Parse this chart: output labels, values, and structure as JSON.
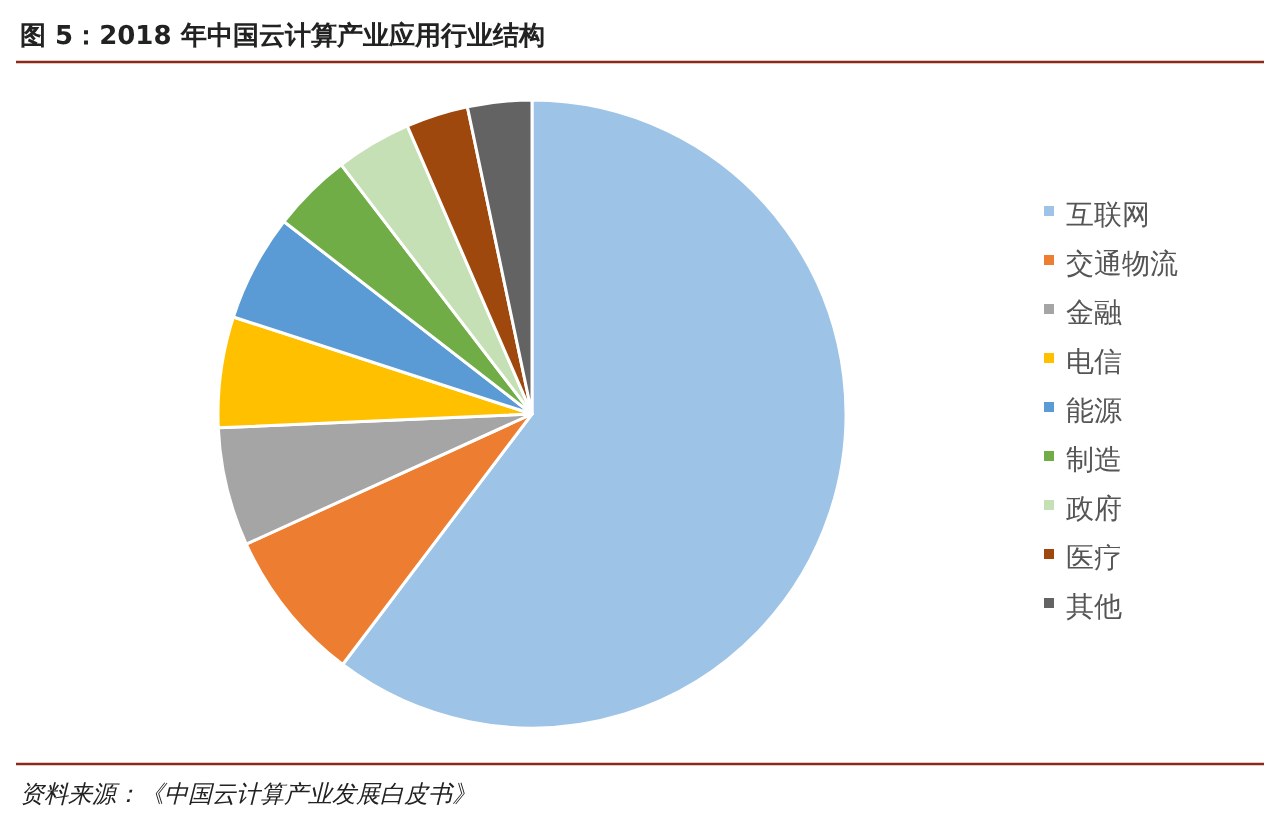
{
  "chart_data": {
    "type": "pie",
    "title": "图 5：2018 年中国云计算产业应用行业结构",
    "categories": [
      "互联网",
      "交通物流",
      "金融",
      "电信",
      "能源",
      "制造",
      "政府",
      "医疗",
      "其他"
    ],
    "values": [
      60.3,
      7.9,
      6.1,
      5.7,
      5.5,
      4.1,
      3.9,
      3.2,
      3.3
    ],
    "colors": [
      "#9dc3e6",
      "#ed7d31",
      "#a5a5a5",
      "#ffc000",
      "#5b9bd5",
      "#70ad47",
      "#c5e0b4",
      "#9e480e",
      "#636363"
    ],
    "legend": "right",
    "annotations": [
      "资料来源：《中国云计算产业发展白皮书》"
    ]
  }
}
